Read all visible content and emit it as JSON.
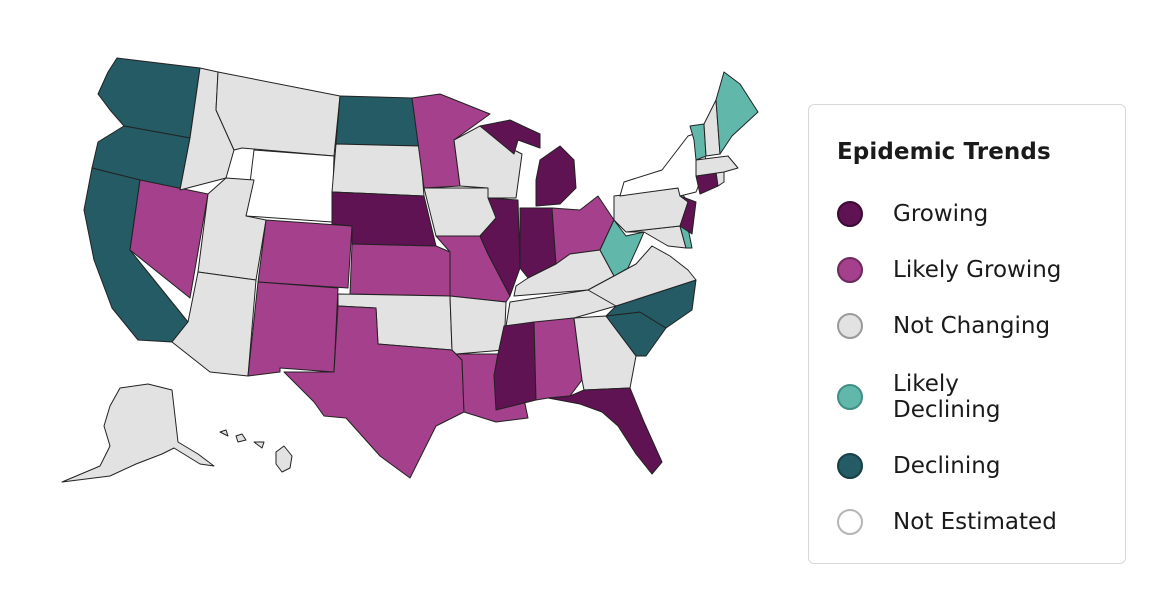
{
  "legend": {
    "title": "Epidemic Trends",
    "items": [
      {
        "label": "Growing",
        "color": "#5f1352",
        "border": "#3a0b33"
      },
      {
        "label": "Likely Growing",
        "color": "#a4408c",
        "border": "#6d2a5d"
      },
      {
        "label": "Not Changing",
        "color": "#e2e2e2",
        "border": "#9a9a9a"
      },
      {
        "label": "Likely Declining",
        "color": "#62b7ab",
        "border": "#3f8f84"
      },
      {
        "label": "Declining",
        "color": "#245b64",
        "border": "#173f45"
      },
      {
        "label": "Not Estimated",
        "color": "#ffffff",
        "border": "#b5b5b5"
      }
    ]
  },
  "map": {
    "states": [
      {
        "name": "WA",
        "status": "Declining"
      },
      {
        "name": "OR",
        "status": "Declining"
      },
      {
        "name": "CA",
        "status": "Declining"
      },
      {
        "name": "NV",
        "status": "Likely Growing"
      },
      {
        "name": "ID",
        "status": "Not Changing"
      },
      {
        "name": "MT",
        "status": "Not Changing"
      },
      {
        "name": "WY",
        "status": "Not Estimated"
      },
      {
        "name": "UT",
        "status": "Not Changing"
      },
      {
        "name": "AZ",
        "status": "Not Changing"
      },
      {
        "name": "CO",
        "status": "Likely Growing"
      },
      {
        "name": "NM",
        "status": "Likely Growing"
      },
      {
        "name": "ND",
        "status": "Declining"
      },
      {
        "name": "SD",
        "status": "Not Changing"
      },
      {
        "name": "NE",
        "status": "Growing"
      },
      {
        "name": "KS",
        "status": "Likely Growing"
      },
      {
        "name": "OK",
        "status": "Not Changing"
      },
      {
        "name": "TX",
        "status": "Likely Growing"
      },
      {
        "name": "MN",
        "status": "Likely Growing"
      },
      {
        "name": "IA",
        "status": "Not Changing"
      },
      {
        "name": "MO",
        "status": "Likely Growing"
      },
      {
        "name": "AR",
        "status": "Not Changing"
      },
      {
        "name": "LA",
        "status": "Likely Growing"
      },
      {
        "name": "WI",
        "status": "Not Changing"
      },
      {
        "name": "IL",
        "status": "Growing"
      },
      {
        "name": "MI",
        "status": "Growing"
      },
      {
        "name": "IN",
        "status": "Growing"
      },
      {
        "name": "OH",
        "status": "Likely Growing"
      },
      {
        "name": "KY",
        "status": "Not Changing"
      },
      {
        "name": "TN",
        "status": "Not Changing"
      },
      {
        "name": "MS",
        "status": "Growing"
      },
      {
        "name": "AL",
        "status": "Likely Growing"
      },
      {
        "name": "GA",
        "status": "Not Changing"
      },
      {
        "name": "FL",
        "status": "Growing"
      },
      {
        "name": "SC",
        "status": "Declining"
      },
      {
        "name": "NC",
        "status": "Declining"
      },
      {
        "name": "VA",
        "status": "Not Changing"
      },
      {
        "name": "WV",
        "status": "Likely Declining"
      },
      {
        "name": "MD",
        "status": "Not Changing"
      },
      {
        "name": "DE",
        "status": "Likely Declining"
      },
      {
        "name": "PA",
        "status": "Not Changing"
      },
      {
        "name": "NJ",
        "status": "Growing"
      },
      {
        "name": "NY",
        "status": "Not Estimated"
      },
      {
        "name": "CT",
        "status": "Growing"
      },
      {
        "name": "RI",
        "status": "Not Changing"
      },
      {
        "name": "MA",
        "status": "Not Changing"
      },
      {
        "name": "VT",
        "status": "Likely Declining"
      },
      {
        "name": "NH",
        "status": "Not Changing"
      },
      {
        "name": "ME",
        "status": "Likely Declining"
      },
      {
        "name": "AK",
        "status": "Not Changing"
      },
      {
        "name": "HI",
        "status": "Not Changing"
      }
    ]
  }
}
